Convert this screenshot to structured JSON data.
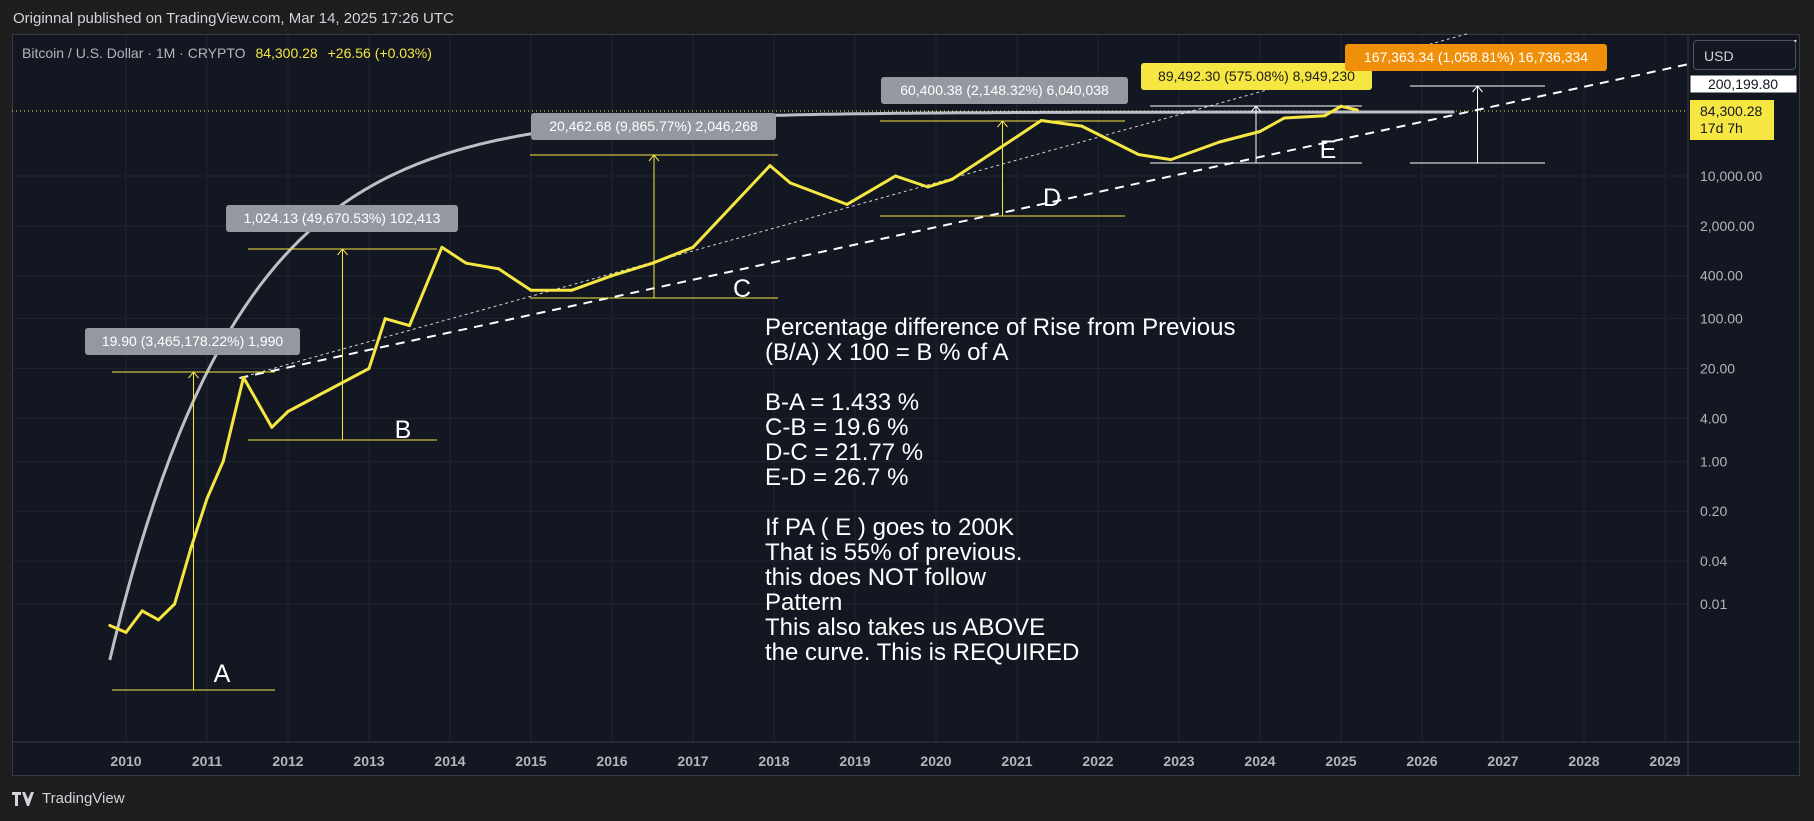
{
  "header": {
    "published": "Originnal published on TradingView.com, Mar 14, 2025 17:26 UTC"
  },
  "legend": {
    "symbol": "Bitcoin / U.S. Dollar · 1M · CRYPTO",
    "price": "84,300.28",
    "change": "+26.56 (+0.03%)"
  },
  "currency_button": "USD",
  "footer": {
    "brand": "TradingView"
  },
  "colors": {
    "price_line": "#f5e642",
    "curve": "#d0d0d8",
    "label_grey": "#9598a1",
    "label_yellow": "#f5e642",
    "label_orange": "#f0900a"
  },
  "chart_data": {
    "type": "line",
    "title": "",
    "y_scale": "log",
    "x_ticks": [
      "2010",
      "2011",
      "2012",
      "2013",
      "2014",
      "2015",
      "2016",
      "2017",
      "2018",
      "2019",
      "2020",
      "2021",
      "2022",
      "2023",
      "2024",
      "2025",
      "2026",
      "2027",
      "2028",
      "2029"
    ],
    "y_ticks": [
      "10,000.00",
      "2,000.00",
      "400.00",
      "100.00",
      "20.00",
      "4.00",
      "1.00",
      "0.20",
      "0.04",
      "0.01"
    ],
    "series": [
      {
        "x": [
          2009.8,
          2010.0,
          2010.2,
          2010.4,
          2010.6,
          2010.8,
          2011.0,
          2011.2,
          2011.45,
          2011.8,
          2012.0,
          2012.5,
          2013.0,
          2013.2,
          2013.5,
          2013.9,
          2014.2,
          2014.6,
          2015.0,
          2015.5,
          2016.0,
          2016.5,
          2017.0,
          2017.5,
          2017.95,
          2018.2,
          2018.9,
          2019.5,
          2019.9,
          2020.2,
          2020.9,
          2021.3,
          2021.8,
          2022.5,
          2022.9,
          2023.5,
          2024.0,
          2024.3,
          2024.8,
          2025.0,
          2025.2
        ],
        "y": [
          0.005,
          0.004,
          0.008,
          0.006,
          0.01,
          0.06,
          0.3,
          1,
          15,
          3,
          5,
          10,
          20,
          100,
          80,
          1000,
          600,
          500,
          250,
          250,
          400,
          600,
          1000,
          4000,
          14000,
          8000,
          4000,
          10000,
          7000,
          9000,
          30000,
          60000,
          50000,
          20000,
          17000,
          30000,
          42000,
          65000,
          70000,
          95000,
          84300
        ]
      }
    ],
    "annotations": {
      "measure_labels": [
        "19.90 (3,465,178.22%) 1,990",
        "1,024.13 (49,670.53%) 102,413",
        "20,462.68 (9,865.77%) 2,046,268",
        "60,400.38 (2,148.32%) 6,040,038",
        "89,492.30 (575.08%) 8,949,230",
        "167,363.34 (1,058.81%) 16,736,334"
      ],
      "point_labels": [
        "A",
        "B",
        "C",
        "D",
        "E"
      ],
      "price_tags": [
        "200,199.80",
        "84,300.28",
        "17d 7h"
      ],
      "text_block": [
        "Percentage difference of Rise from Previous",
        "(B/A) X 100 =  B % of A",
        "",
        "B-A = 1.433 %",
        "C-B = 19.6 %",
        "D-C = 21.77 %",
        "E-D = 26.7 %",
        "",
        "If PA ( E ) goes to 200K",
        "That is 55% of previous.",
        "this does NOT follow",
        "Pattern",
        "This also takes us ABOVE",
        "the curve. This is REQUIRED"
      ]
    }
  }
}
